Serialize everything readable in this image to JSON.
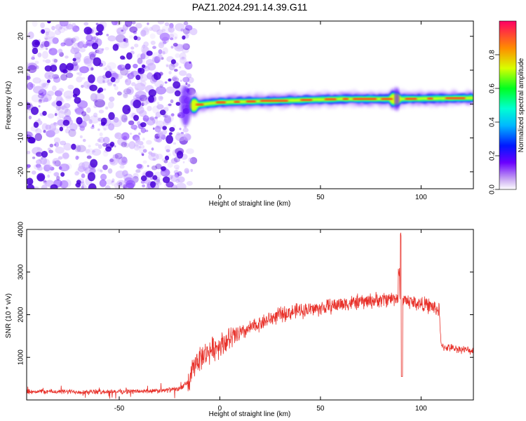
{
  "title": "PAZ1.2024.291.14.39.G11",
  "chart_data": [
    {
      "type": "heatmap",
      "xlabel": "Height of straight line (km)",
      "ylabel": "Frequency (Hz)",
      "xlim": [
        -96,
        126
      ],
      "ylim": [
        -25,
        24.5
      ],
      "xticks": [
        -50,
        0,
        50,
        100
      ],
      "yticks": [
        -20,
        -10,
        0,
        10,
        20
      ],
      "colorbar": {
        "label": "Normalized spectral amplitude",
        "range": [
          0,
          1
        ],
        "ticks": [
          0.0,
          0.2,
          0.4,
          0.6,
          0.8
        ]
      },
      "noise_region_x": [
        -96,
        -15
      ],
      "signal_band": {
        "x_range": [
          -15,
          126
        ],
        "frequency_center": [
          {
            "x": -15,
            "y": -0.5
          },
          {
            "x": 0,
            "y": 0.5
          },
          {
            "x": 30,
            "y": 1.0
          },
          {
            "x": 60,
            "y": 1.5
          },
          {
            "x": 90,
            "y": 1.5
          },
          {
            "x": 126,
            "y": 1.8
          }
        ],
        "peak_amplitude": 0.9
      }
    },
    {
      "type": "line",
      "xlabel": "Height of straight line (km)",
      "ylabel": "SNR (10 * v/v)",
      "xlim": [
        -96,
        126
      ],
      "ylim": [
        0,
        4000
      ],
      "xticks": [
        -50,
        0,
        50,
        100
      ],
      "yticks": [
        1000,
        2000,
        3000,
        4000
      ],
      "color": "#e8312a",
      "trend": [
        {
          "x": -96,
          "y": 200
        },
        {
          "x": -60,
          "y": 190
        },
        {
          "x": -30,
          "y": 210
        },
        {
          "x": -20,
          "y": 260
        },
        {
          "x": -15,
          "y": 450
        },
        {
          "x": -12,
          "y": 900
        },
        {
          "x": -5,
          "y": 1150
        },
        {
          "x": 0,
          "y": 1300
        },
        {
          "x": 10,
          "y": 1550
        },
        {
          "x": 20,
          "y": 1800
        },
        {
          "x": 30,
          "y": 2000
        },
        {
          "x": 40,
          "y": 2100
        },
        {
          "x": 50,
          "y": 2150
        },
        {
          "x": 60,
          "y": 2250
        },
        {
          "x": 70,
          "y": 2300
        },
        {
          "x": 80,
          "y": 2350
        },
        {
          "x": 88,
          "y": 2400
        },
        {
          "x": 95,
          "y": 2300
        },
        {
          "x": 105,
          "y": 2200
        },
        {
          "x": 109,
          "y": 2100
        },
        {
          "x": 110,
          "y": 1250
        },
        {
          "x": 118,
          "y": 1200
        },
        {
          "x": 126,
          "y": 1150
        }
      ],
      "features": [
        {
          "x": 90,
          "y": 4000,
          "kind": "spike"
        },
        {
          "x": 89,
          "y": 3100,
          "kind": "spike"
        },
        {
          "x": 90.5,
          "y": 550,
          "kind": "dip"
        }
      ]
    }
  ]
}
